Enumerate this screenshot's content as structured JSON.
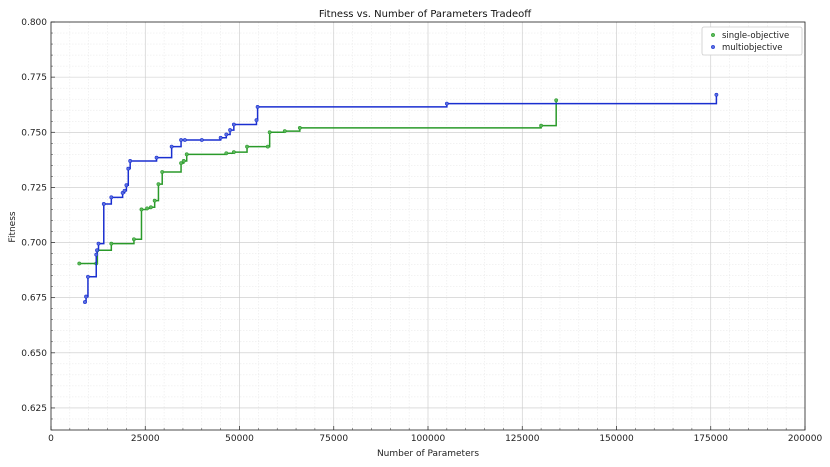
{
  "chart_data": {
    "type": "line",
    "title": "Fitness vs. Number of Parameters Tradeoff",
    "xlabel": "Number of Parameters",
    "ylabel": "Fitness",
    "xlim": [
      0,
      200000
    ],
    "ylim": [
      0.615,
      0.8
    ],
    "xticks": [
      0,
      25000,
      50000,
      75000,
      100000,
      125000,
      150000,
      175000,
      200000
    ],
    "yticks": [
      0.625,
      0.65,
      0.675,
      0.7,
      0.725,
      0.75,
      0.775,
      0.8
    ],
    "grid": true,
    "legend_position": "top-right",
    "series": [
      {
        "name": "single-objective",
        "color": "#2a9a2a",
        "marker_color": "#5cb85c",
        "x": [
          7500,
          12000,
          12300,
          16000,
          22000,
          24000,
          25500,
          26500,
          27500,
          28500,
          29500,
          34500,
          35200,
          36000,
          46500,
          48500,
          52000,
          57500,
          58000,
          62000,
          66000,
          130000,
          134000
        ],
        "y": [
          0.6905,
          0.6905,
          0.6965,
          0.6995,
          0.7015,
          0.715,
          0.7155,
          0.716,
          0.719,
          0.7265,
          0.732,
          0.736,
          0.737,
          0.74,
          0.7405,
          0.741,
          0.7435,
          0.7435,
          0.75,
          0.7505,
          0.752,
          0.753,
          0.7645
        ]
      },
      {
        "name": "multiobjective",
        "color": "#1a2fd0",
        "marker_color": "#5b6fe0",
        "x": [
          9000,
          9300,
          9800,
          12000,
          12200,
          12600,
          14000,
          16000,
          19000,
          19500,
          20000,
          20500,
          21000,
          28000,
          32000,
          34500,
          35500,
          40000,
          45000,
          46500,
          47500,
          48500,
          54500,
          54800,
          105000,
          176500
        ],
        "y": [
          0.673,
          0.6755,
          0.6845,
          0.6945,
          0.6965,
          0.6995,
          0.7175,
          0.7205,
          0.7225,
          0.7235,
          0.726,
          0.7335,
          0.737,
          0.7385,
          0.7435,
          0.7465,
          0.7465,
          0.7465,
          0.7475,
          0.749,
          0.751,
          0.7535,
          0.7555,
          0.7615,
          0.763,
          0.767
        ]
      }
    ]
  }
}
